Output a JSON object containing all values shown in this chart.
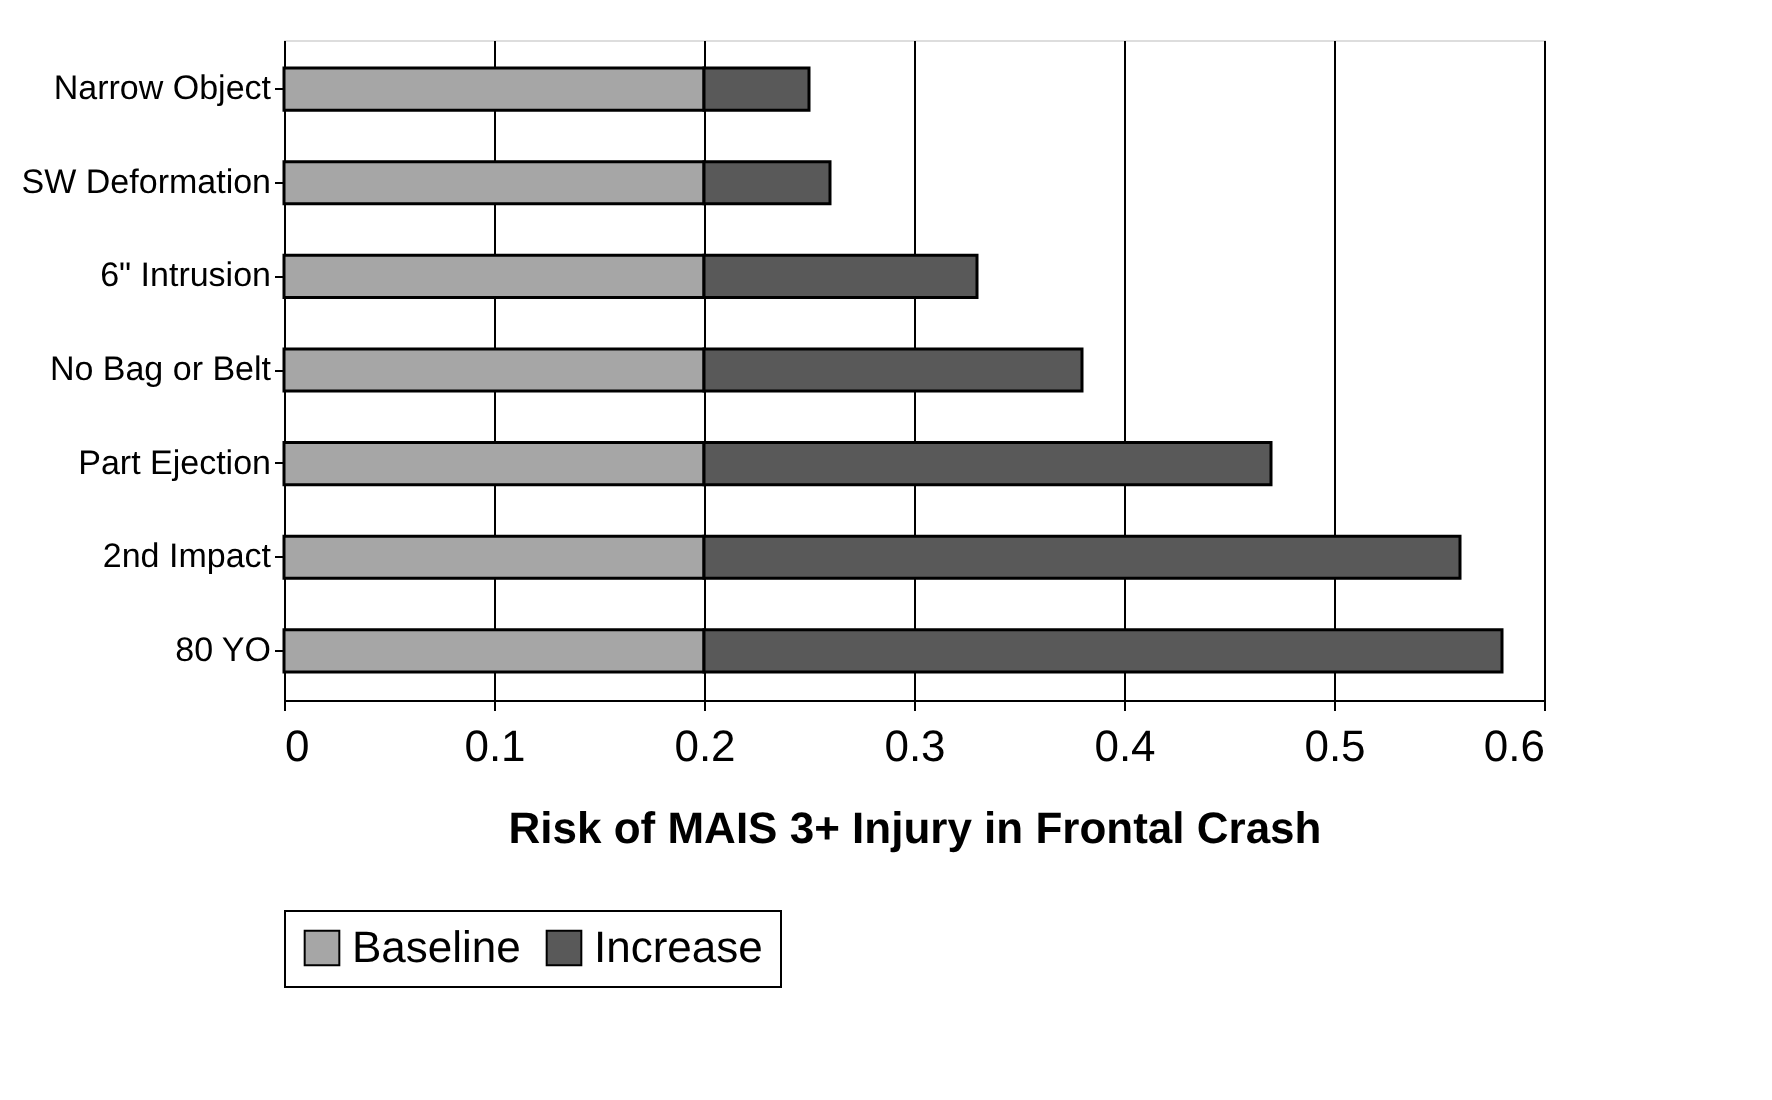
{
  "chart_data": {
    "type": "bar",
    "orientation": "horizontal",
    "stacked": true,
    "categories": [
      "Narrow Object",
      "SW Deformation",
      "6\" Intrusion",
      "No Bag or Belt",
      "Part Ejection",
      "2nd Impact",
      "80 YO"
    ],
    "series": [
      {
        "name": "Baseline",
        "color": "#a6a6a6",
        "values": [
          0.2,
          0.2,
          0.2,
          0.2,
          0.2,
          0.2,
          0.2
        ]
      },
      {
        "name": "Increase",
        "color": "#595959",
        "values": [
          0.05,
          0.06,
          0.13,
          0.18,
          0.27,
          0.36,
          0.38
        ]
      }
    ],
    "xlabel": "Risk of MAIS 3+ Injury in  Frontal Crash",
    "xlim": [
      0,
      0.6
    ],
    "xticks": [
      0,
      0.1,
      0.2,
      0.3,
      0.4,
      0.5,
      0.6
    ],
    "grid": "x",
    "legend": "bottom"
  }
}
